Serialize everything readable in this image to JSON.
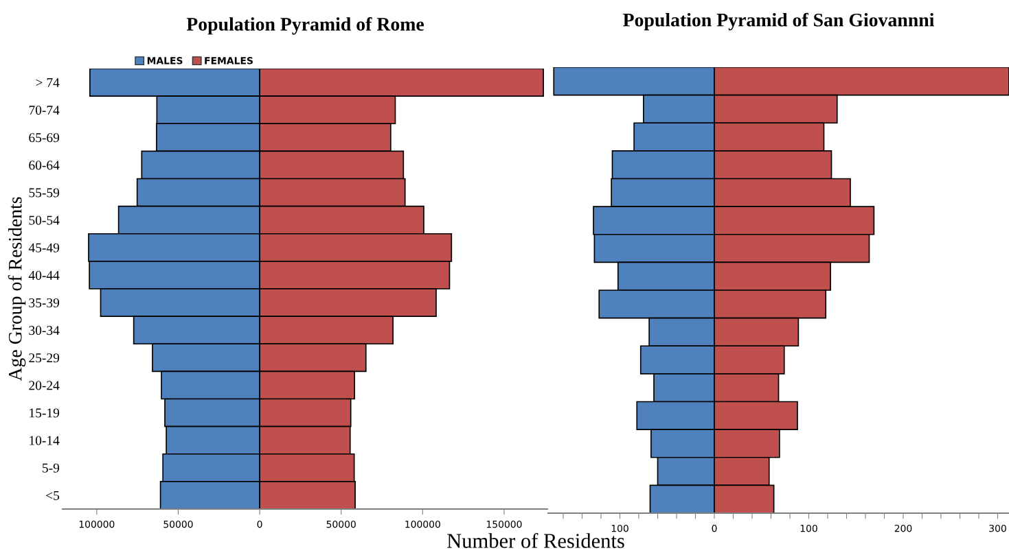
{
  "chart_data": [
    {
      "type": "bar",
      "orientation": "horizontal",
      "title": "Population Pyramid of Rome",
      "xlabel": "Number of Residents",
      "ylabel": "Age Group of Residents",
      "categories": [
        "> 74",
        "70-74",
        "65-69",
        "60-64",
        "55-59",
        "50-54",
        "45-49",
        "40-44",
        "35-39",
        "30-34",
        "25-29",
        "20-24",
        "15-19",
        "10-14",
        "5-9",
        "<5"
      ],
      "series": [
        {
          "name": "MALES",
          "color": "#4f81bd",
          "values": [
            -104200,
            -63100,
            -63300,
            -72400,
            -75200,
            -86600,
            -105000,
            -104500,
            -97600,
            -77300,
            -65800,
            -60300,
            -58200,
            -57300,
            -59400,
            -60900
          ]
        },
        {
          "name": "FEMALES",
          "color": "#c0504d",
          "values": [
            174100,
            83200,
            80400,
            88200,
            89200,
            100700,
            117700,
            116500,
            108300,
            81800,
            65200,
            58200,
            55900,
            55500,
            58000,
            58600
          ]
        }
      ],
      "xlim": [
        -121000,
        177000
      ],
      "xticks": [
        {
          "value": -100000,
          "label": "100000"
        },
        {
          "value": -50000,
          "label": "50000"
        },
        0,
        50000,
        100000,
        150000
      ],
      "legend": "top",
      "grid": false,
      "stacked": true
    },
    {
      "type": "bar",
      "orientation": "horizontal",
      "title": "Population Pyramid of San Giovannni",
      "stacked": true,
      "categories": [
        null,
        null,
        null,
        null,
        null,
        null,
        null,
        null,
        null,
        null,
        null,
        null,
        null,
        null,
        null,
        null
      ],
      "series": [
        {
          "color": "#4f81bd",
          "values": [
            -170,
            -75,
            -85,
            -108,
            -109,
            -128,
            -127,
            -102,
            -122,
            -69,
            -78,
            -64,
            -82,
            -67,
            -60,
            -68
          ]
        },
        {
          "color": "#c0504d",
          "values": [
            312,
            130,
            116,
            124,
            144,
            169,
            164,
            123,
            118,
            89,
            74,
            68,
            88,
            69,
            58,
            63
          ]
        }
      ],
      "xlim": [
        -176,
        312
      ],
      "xticks": [
        {
          "value": -160,
          "label": null
        },
        {
          "value": -140,
          "label": null
        },
        {
          "value": -120,
          "label": null
        },
        {
          "value": -100,
          "label": "100"
        },
        {
          "value": -80,
          "label": null
        },
        {
          "value": -60,
          "label": null
        },
        {
          "value": -40,
          "label": null
        },
        {
          "value": -20,
          "label": null
        },
        0,
        {
          "value": 20,
          "label": null
        },
        {
          "value": 40,
          "label": null
        },
        {
          "value": 60,
          "label": null
        },
        {
          "value": 80,
          "label": null
        },
        100,
        {
          "value": 120,
          "label": null
        },
        {
          "value": 140,
          "label": null
        },
        {
          "value": 160,
          "label": null
        },
        {
          "value": 180,
          "label": null
        },
        200,
        {
          "value": 220,
          "label": null
        },
        {
          "value": 240,
          "label": null
        },
        {
          "value": 260,
          "label": null
        },
        {
          "value": 280,
          "label": null
        },
        300
      ],
      "tick_labels": "x",
      "grid": false
    }
  ]
}
